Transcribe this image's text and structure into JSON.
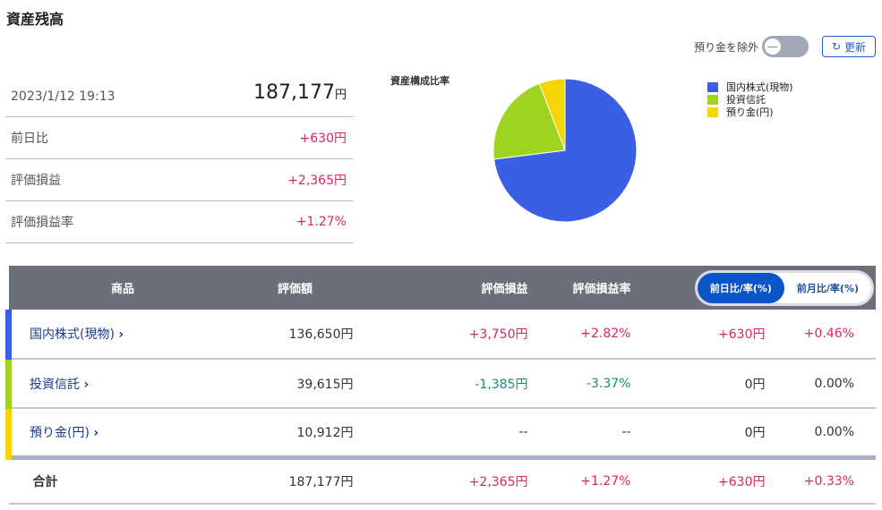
{
  "title": "資産残高",
  "summary": {
    "datetime": "2023/1/12 19:13",
    "total": "187,177",
    "yen": "円",
    "rows": [
      {
        "label": "前日比",
        "value": "+630円"
      },
      {
        "label": "評価損益",
        "value": "+2,365円"
      },
      {
        "label": "評価損益率",
        "value": "+1.27%"
      }
    ]
  },
  "controls": {
    "exclude_label": "預り金を除外",
    "exclude_on": false,
    "refresh_label": "更新"
  },
  "chart_data": {
    "type": "pie",
    "title": "資産構成比率",
    "slices": [
      {
        "name": "国内株式(現物)",
        "value": 136650,
        "color": "#3a5fe5"
      },
      {
        "name": "投資信託",
        "value": 39615,
        "color": "#9ed421"
      },
      {
        "name": "預り金(円)",
        "value": 10912,
        "color": "#f7d500"
      }
    ],
    "legend": "right"
  },
  "table": {
    "headers": [
      "商品",
      "評価額",
      "評価損益",
      "評価損益率"
    ],
    "tabs": [
      {
        "label": "前日比/率(%)",
        "active": true
      },
      {
        "label": "前月比/率(%)",
        "active": false
      }
    ],
    "rows": [
      {
        "name": "国内株式(現物)",
        "color": "#3a5fe5",
        "amount": "136,650円",
        "pl": "+3,750円",
        "plr": "+2.82%",
        "d": "+630円",
        "dr": "+0.46%",
        "sign": "pos",
        "dsign": "pos"
      },
      {
        "name": "投資信託",
        "color": "#9ed421",
        "amount": "39,615円",
        "pl": "-1,385円",
        "plr": "-3.37%",
        "d": "0円",
        "dr": "0.00%",
        "sign": "neg",
        "dsign": ""
      },
      {
        "name": "預り金(円)",
        "color": "#f7d500",
        "amount": "10,912円",
        "pl": "--",
        "plr": "--",
        "d": "0円",
        "dr": "0.00%",
        "sign": "",
        "dsign": ""
      }
    ],
    "total": {
      "name": "合計",
      "amount": "187,177円",
      "pl": "+2,365円",
      "plr": "+1.27%",
      "d": "+630円",
      "dr": "+0.33%"
    }
  },
  "icons": {
    "chevron": "chevron-right-icon",
    "refresh": "refresh-icon"
  }
}
